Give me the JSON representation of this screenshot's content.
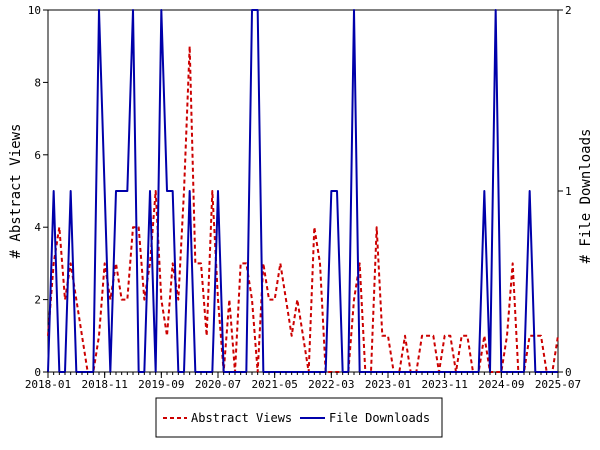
{
  "chart_data": {
    "type": "line",
    "title": "",
    "xlabel": "",
    "ylabel_left": "# Abstract Views",
    "ylabel_right": "# File Downloads",
    "x_tick_labels": [
      "2018-01",
      "2018-11",
      "2019-09",
      "2020-07",
      "2021-05",
      "2022-03",
      "2023-01",
      "2023-11",
      "2024-09",
      "2025-07"
    ],
    "x_range": [
      "2018-01",
      "2025-07"
    ],
    "y_left_ticks": [
      "0",
      "2",
      "4",
      "6",
      "8",
      "10"
    ],
    "y_left_range": [
      0,
      10
    ],
    "y_right_ticks": [
      "0",
      "1",
      "2"
    ],
    "y_right_range": [
      0,
      2
    ],
    "grid": false,
    "legend_position": "bottom-center",
    "series": [
      {
        "name": "Abstract Views",
        "axis": "left",
        "color": "#cc0000",
        "style": "dashed",
        "x": [
          "2018-01",
          "2018-02",
          "2018-03",
          "2018-04",
          "2018-05",
          "2018-06",
          "2018-07",
          "2018-08",
          "2018-09",
          "2018-10",
          "2018-11",
          "2018-12",
          "2019-01",
          "2019-02",
          "2019-03",
          "2019-04",
          "2019-05",
          "2019-06",
          "2019-07",
          "2019-08",
          "2019-09",
          "2019-10",
          "2019-11",
          "2019-12",
          "2020-01",
          "2020-02",
          "2020-03",
          "2020-04",
          "2020-05",
          "2020-06",
          "2020-07",
          "2020-08",
          "2020-09",
          "2020-10",
          "2020-11",
          "2020-12",
          "2021-01",
          "2021-02",
          "2021-03",
          "2021-04",
          "2021-05",
          "2021-06",
          "2021-07",
          "2021-08",
          "2021-09",
          "2021-10",
          "2021-11",
          "2021-12",
          "2022-01",
          "2022-02",
          "2022-03",
          "2022-04",
          "2022-05",
          "2022-06",
          "2022-07",
          "2022-08",
          "2022-09",
          "2022-10",
          "2022-11",
          "2022-12",
          "2023-01",
          "2023-02",
          "2023-03",
          "2023-04",
          "2023-05",
          "2023-06",
          "2023-07",
          "2023-08",
          "2023-09",
          "2023-10",
          "2023-11",
          "2023-12",
          "2024-01",
          "2024-02",
          "2024-03",
          "2024-04",
          "2024-05",
          "2024-06",
          "2024-07",
          "2024-08",
          "2024-09",
          "2024-10",
          "2024-11",
          "2024-12",
          "2025-01",
          "2025-02",
          "2025-03",
          "2025-04",
          "2025-05",
          "2025-06",
          "2025-07"
        ],
        "y": [
          1,
          3,
          4,
          2,
          3,
          2,
          1,
          0,
          0,
          1,
          3,
          2,
          3,
          2,
          2,
          4,
          4,
          2,
          3,
          5,
          2,
          1,
          3,
          2,
          5,
          9,
          3,
          3,
          1,
          5,
          2,
          0,
          2,
          0,
          3,
          3,
          2,
          0,
          3,
          2,
          2,
          3,
          2,
          1,
          2,
          1,
          0,
          4,
          3,
          0,
          0,
          0,
          0,
          0,
          2,
          3,
          0,
          0,
          4,
          1,
          1,
          0,
          0,
          1,
          0,
          0,
          1,
          1,
          1,
          0,
          1,
          1,
          0,
          1,
          1,
          0,
          0,
          1,
          0,
          0,
          0,
          1,
          3,
          0,
          0,
          1,
          1,
          1,
          0,
          0,
          1
        ]
      },
      {
        "name": "File Downloads",
        "axis": "right",
        "color": "#0000aa",
        "style": "solid",
        "x": [
          "2018-01",
          "2018-02",
          "2018-03",
          "2018-04",
          "2018-05",
          "2018-06",
          "2018-07",
          "2018-08",
          "2018-09",
          "2018-10",
          "2018-11",
          "2018-12",
          "2019-01",
          "2019-02",
          "2019-03",
          "2019-04",
          "2019-05",
          "2019-06",
          "2019-07",
          "2019-08",
          "2019-09",
          "2019-10",
          "2019-11",
          "2019-12",
          "2020-01",
          "2020-02",
          "2020-03",
          "2020-04",
          "2020-05",
          "2020-06",
          "2020-07",
          "2020-08",
          "2020-09",
          "2020-10",
          "2020-11",
          "2020-12",
          "2021-01",
          "2021-02",
          "2021-03",
          "2021-04",
          "2021-05",
          "2021-06",
          "2021-07",
          "2021-08",
          "2021-09",
          "2021-10",
          "2021-11",
          "2021-12",
          "2022-01",
          "2022-02",
          "2022-03",
          "2022-04",
          "2022-05",
          "2022-06",
          "2022-07",
          "2022-08",
          "2022-09",
          "2022-10",
          "2022-11",
          "2022-12",
          "2023-01",
          "2023-02",
          "2023-03",
          "2023-04",
          "2023-05",
          "2023-06",
          "2023-07",
          "2023-08",
          "2023-09",
          "2023-10",
          "2023-11",
          "2023-12",
          "2024-01",
          "2024-02",
          "2024-03",
          "2024-04",
          "2024-05",
          "2024-06",
          "2024-07",
          "2024-08",
          "2024-09",
          "2024-10",
          "2024-11",
          "2024-12",
          "2025-01",
          "2025-02",
          "2025-03",
          "2025-04",
          "2025-05",
          "2025-06",
          "2025-07"
        ],
        "y": [
          0,
          1,
          0,
          0,
          1,
          0,
          0,
          0,
          0,
          2,
          1,
          0,
          1,
          1,
          1,
          2,
          0,
          0,
          1,
          0,
          2,
          1,
          1,
          0,
          0,
          1,
          0,
          0,
          0,
          0,
          1,
          0,
          0,
          0,
          0,
          0,
          2,
          2,
          0,
          0,
          0,
          0,
          0,
          0,
          0,
          0,
          0,
          0,
          0,
          0,
          1,
          1,
          0,
          0,
          2,
          0,
          0,
          0,
          0,
          0,
          0,
          0,
          0,
          0,
          0,
          0,
          0,
          0,
          0,
          0,
          0,
          0,
          0,
          0,
          0,
          0,
          0,
          1,
          0,
          2,
          0,
          0,
          0,
          0,
          0,
          1,
          0,
          0,
          0,
          0,
          0
        ]
      }
    ]
  }
}
